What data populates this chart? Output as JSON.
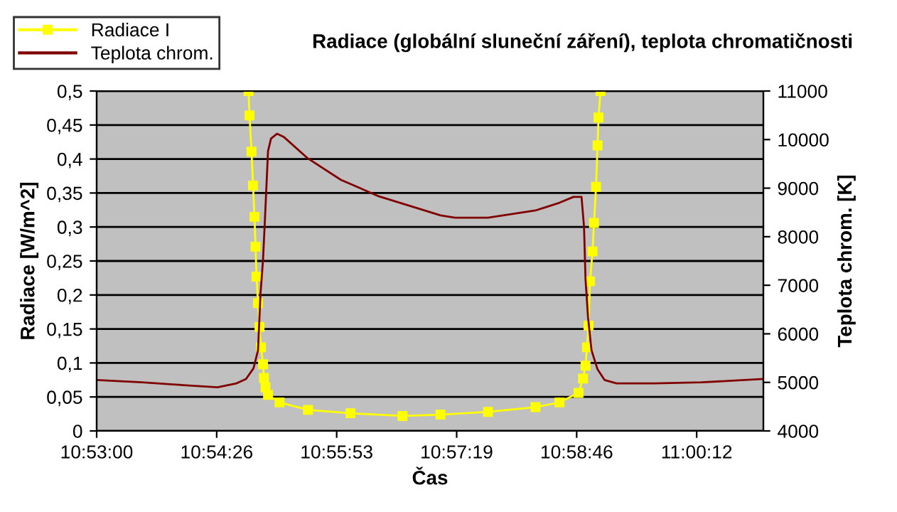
{
  "chart_data": {
    "type": "line",
    "title": "Radiace (globální sluneční záření), teplota chromatičnosti",
    "xlabel": "Čas",
    "ylabel": "Radiace [W/m^2]",
    "y2label": "Teplota chrom. [K]",
    "xlim": [
      10.88333,
      11.01667
    ],
    "xticks": [
      {
        "value": 10.88333,
        "label": "10:53:00"
      },
      {
        "value": 10.90733,
        "label": "10:54:26"
      },
      {
        "value": 10.93133,
        "label": "10:55:53"
      },
      {
        "value": 10.95533,
        "label": "10:57:19"
      },
      {
        "value": 10.97933,
        "label": "10:58:46"
      },
      {
        "value": 11.00333,
        "label": "11:00:12"
      }
    ],
    "ylim": [
      0,
      0.5
    ],
    "yticks": [
      0,
      {
        "value": 0.05,
        "label": "0,05"
      },
      {
        "value": 0.1,
        "label": "0,1"
      },
      {
        "value": 0.15,
        "label": "0,15"
      },
      {
        "value": 0.2,
        "label": "0,2"
      },
      {
        "value": 0.25,
        "label": "0,25"
      },
      {
        "value": 0.3,
        "label": "0,3"
      },
      {
        "value": 0.35,
        "label": "0,35"
      },
      {
        "value": 0.4,
        "label": "0,4"
      },
      {
        "value": 0.45,
        "label": "0,45"
      },
      {
        "value": 0.5,
        "label": "0,5"
      }
    ],
    "y2lim": [
      4000,
      11000
    ],
    "y2ticks": [
      4000,
      5000,
      6000,
      7000,
      8000,
      9000,
      10000,
      11000
    ],
    "grid": "y",
    "legend": "top left",
    "series": [
      {
        "name": "Radiace I",
        "color": "#ffff00",
        "marker": "square",
        "x": [
          10.9137,
          10.9139,
          10.9143,
          10.9146,
          10.9149,
          10.9151,
          10.9153,
          10.9156,
          10.9159,
          10.9162,
          10.9166,
          10.9168,
          10.9171,
          10.9176,
          10.9199,
          10.9256,
          10.9341,
          10.9445,
          10.9521,
          10.9616,
          10.9711,
          10.9759,
          10.9797,
          10.9806,
          10.9811,
          10.9814,
          10.9817,
          10.982,
          10.9825,
          10.9828,
          10.9832,
          10.9835,
          10.9837,
          10.9841
        ],
        "values": [
          0.5,
          0.464,
          0.411,
          0.361,
          0.315,
          0.271,
          0.227,
          0.188,
          0.153,
          0.123,
          0.098,
          0.078,
          0.064,
          0.053,
          0.042,
          0.031,
          0.026,
          0.022,
          0.024,
          0.028,
          0.035,
          0.042,
          0.056,
          0.077,
          0.096,
          0.123,
          0.155,
          0.22,
          0.264,
          0.306,
          0.359,
          0.42,
          0.461,
          0.5
        ]
      },
      {
        "name": "Teplota chrom.",
        "color": "#800000",
        "axis": "y2",
        "marker": "none",
        "x": [
          10.88333,
          10.8924,
          10.8981,
          10.9075,
          10.9113,
          10.9132,
          10.9147,
          10.9156,
          10.9161,
          10.9166,
          10.917,
          10.9176,
          10.9182,
          10.9194,
          10.9208,
          10.9256,
          10.9322,
          10.9398,
          10.9474,
          10.9521,
          10.955,
          10.9616,
          10.9711,
          10.9759,
          10.9787,
          10.9803,
          10.9808,
          10.9811,
          10.9816,
          10.9823,
          10.9835,
          10.9849,
          10.9873,
          10.9949,
          11.0043,
          11.01667
        ],
        "values": [
          5050,
          5000,
          4960,
          4900,
          4980,
          5070,
          5290,
          5660,
          6830,
          7520,
          8390,
          9760,
          10020,
          10120,
          10050,
          9610,
          9170,
          8830,
          8590,
          8440,
          8390,
          8390,
          8540,
          8700,
          8820,
          8820,
          8200,
          7120,
          6340,
          5660,
          5270,
          5050,
          4980,
          4980,
          5000,
          5070
        ]
      }
    ]
  }
}
